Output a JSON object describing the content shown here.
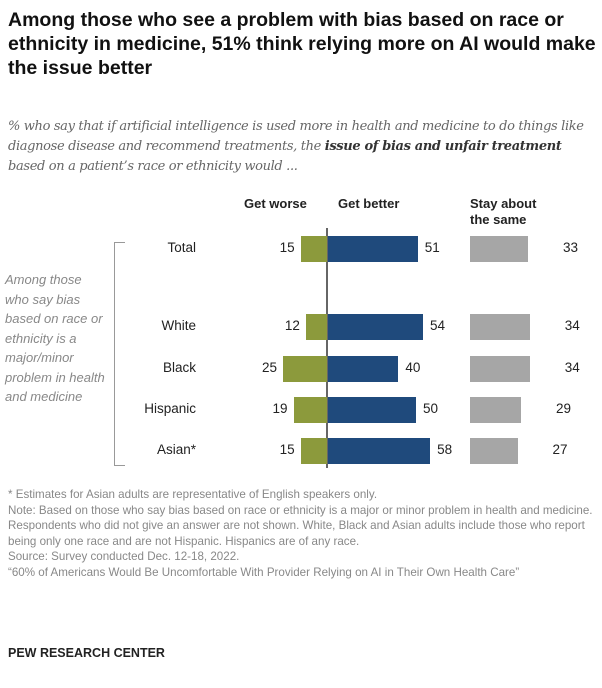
{
  "title": "Among those who see a problem with bias based on race or ethnicity in medicine, 51% think relying more on AI would make the issue better",
  "subtitle": {
    "pre": "% who say that if artificial intelligence is used more in health and medicine to do things like diagnose disease and recommend treatments, the ",
    "bold": "issue of bias and unfair treatment",
    "post": " based on a patient’s race or ethnicity would ..."
  },
  "side_label": "Among those who say bias based on race or ethnicity is a major/minor problem in health and medicine",
  "chart_data": {
    "type": "bar",
    "orientation": "horizontal",
    "categories": [
      "Total",
      "White",
      "Black",
      "Hispanic",
      "Asian*"
    ],
    "series": [
      {
        "name": "Get worse",
        "values": [
          15,
          12,
          25,
          19,
          15
        ],
        "color": "#8c9a3c"
      },
      {
        "name": "Get better",
        "values": [
          51,
          54,
          40,
          50,
          58
        ],
        "color": "#1f4a7c"
      },
      {
        "name": "Stay about the same",
        "values": [
          33,
          34,
          34,
          29,
          27
        ],
        "color": "#a6a6a6"
      }
    ]
  },
  "footnotes": [
    "* Estimates for Asian adults are representative of English speakers only.",
    "Note: Based on those who say bias based on race or ethnicity is a major or minor problem in health and medicine. Respondents who did not give an answer are not shown. White, Black and Asian adults include those who report being only one race and are not Hispanic. Hispanics are of any race.",
    "Source: Survey conducted Dec. 12-18, 2022.",
    "“60% of Americans Would Be Uncomfortable With Provider Relying on AI in Their Own Health Care”"
  ],
  "logo": "PEW RESEARCH CENTER"
}
